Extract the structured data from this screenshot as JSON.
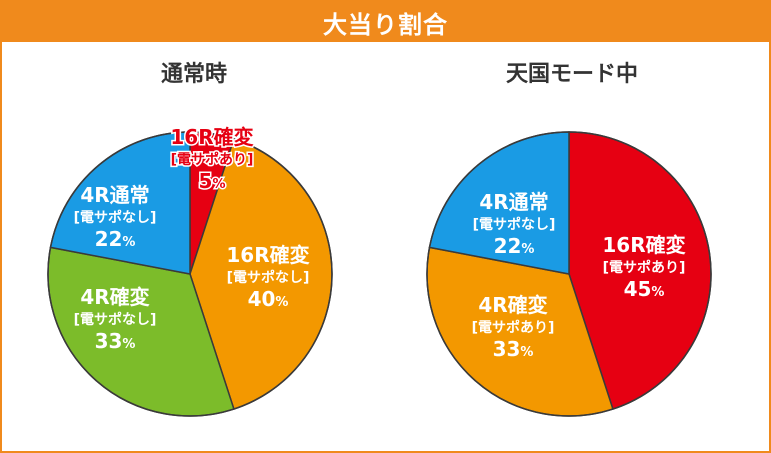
{
  "header": {
    "title": "大当り割合"
  },
  "colors": {
    "accent": "#f08a1c",
    "red": "#e60012",
    "orange": "#f39800",
    "green": "#7cbc2a",
    "blue": "#1a9be4",
    "label_white": "#ffffff",
    "label_red": "#e60012"
  },
  "chart_data": [
    {
      "type": "pie",
      "title": "通常時",
      "slices": [
        {
          "name": "16R確変",
          "note": "[電サポあり]",
          "value": 5,
          "pct_label": "5",
          "pct_unit": "%",
          "color": "#e60012"
        },
        {
          "name": "16R確変",
          "note": "[電サポなし]",
          "value": 40,
          "pct_label": "40",
          "pct_unit": "%",
          "color": "#f39800"
        },
        {
          "name": "4R確変",
          "note": "[電サポなし]",
          "value": 33,
          "pct_label": "33",
          "pct_unit": "%",
          "color": "#7cbc2a"
        },
        {
          "name": "4R通常",
          "note": "[電サポなし]",
          "value": 22,
          "pct_label": "22",
          "pct_unit": "%",
          "color": "#1a9be4"
        }
      ]
    },
    {
      "type": "pie",
      "title": "天国モード中",
      "slices": [
        {
          "name": "16R確変",
          "note": "[電サポあり]",
          "value": 45,
          "pct_label": "45",
          "pct_unit": "%",
          "color": "#e60012"
        },
        {
          "name": "4R確変",
          "note": "[電サポあり]",
          "value": 33,
          "pct_label": "33",
          "pct_unit": "%",
          "color": "#f39800"
        },
        {
          "name": "4R通常",
          "note": "[電サポなし]",
          "value": 22,
          "pct_label": "22",
          "pct_unit": "%",
          "color": "#1a9be4"
        }
      ]
    }
  ]
}
